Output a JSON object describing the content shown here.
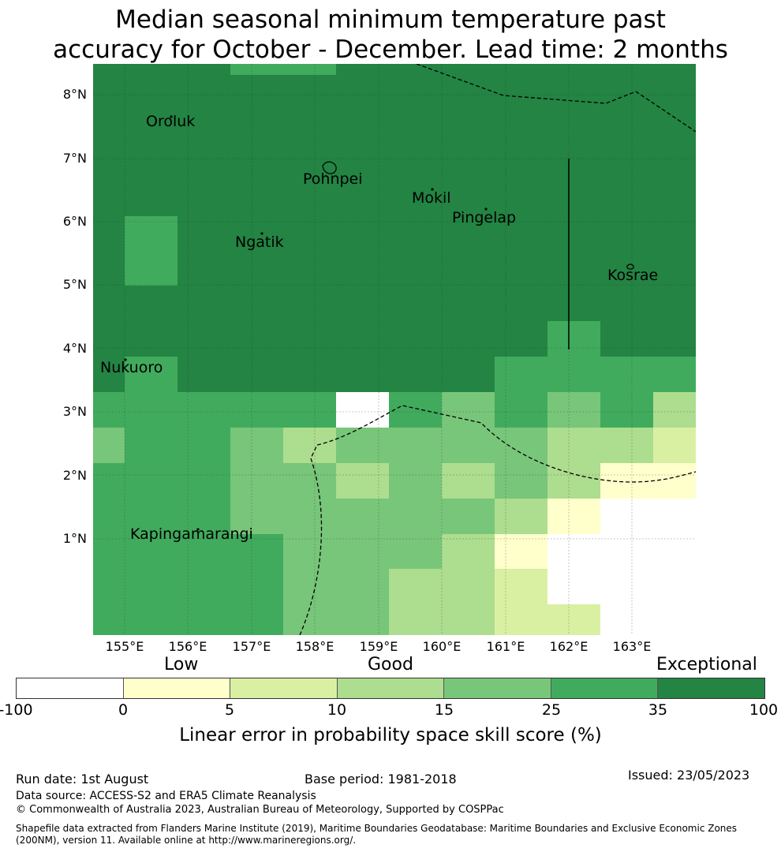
{
  "title": {
    "line1": "Median seasonal minimum temperature past",
    "line2": "accuracy for October - December. Lead time: 2 months"
  },
  "map": {
    "lat_labels": [
      "8°N",
      "7°N",
      "6°N",
      "5°N",
      "4°N",
      "3°N",
      "2°N",
      "1°N"
    ],
    "lon_labels": [
      "155°E",
      "156°E",
      "157°E",
      "158°E",
      "159°E",
      "160°E",
      "161°E",
      "162°E",
      "163°E"
    ],
    "places": [
      {
        "name": "Oroluk"
      },
      {
        "name": "Pohnpei"
      },
      {
        "name": "Mokil"
      },
      {
        "name": "Pingelap"
      },
      {
        "name": "Ngatik"
      },
      {
        "name": "Kosrae"
      },
      {
        "name": "Nukuoro"
      },
      {
        "name": "Kapingamarangi"
      }
    ]
  },
  "legend": {
    "categories": [
      "Low",
      "Good",
      "Exceptional"
    ],
    "ticks": [
      "-100",
      "0",
      "5",
      "10",
      "15",
      "25",
      "35",
      "100"
    ],
    "colors": [
      "#ffffff",
      "#ffffcc",
      "#d9f0a3",
      "#addd8e",
      "#78c679",
      "#41ab5d",
      "#238443"
    ],
    "title": "Linear error in probability space skill score (%)"
  },
  "footer": {
    "run_date": "Run date: 1st August",
    "base_period": "Base period: 1981-2018",
    "issued": "Issued: 23/05/2023",
    "data_source": "Data source: ACCESS-S2 and ERA5 Climate Reanalysis",
    "copyright": "© Commonwealth of Australia 2023, Australian Bureau of Meteorology, Supported by COSPPac",
    "shapefile": "Shapefile data extracted from Flanders Marine Institute (2019), Maritime Boundaries Geodatabase: Maritime Boundaries and Exclusive Economic Zones (200NM), version 11. Available online at http://www.marineregions.org/."
  }
}
